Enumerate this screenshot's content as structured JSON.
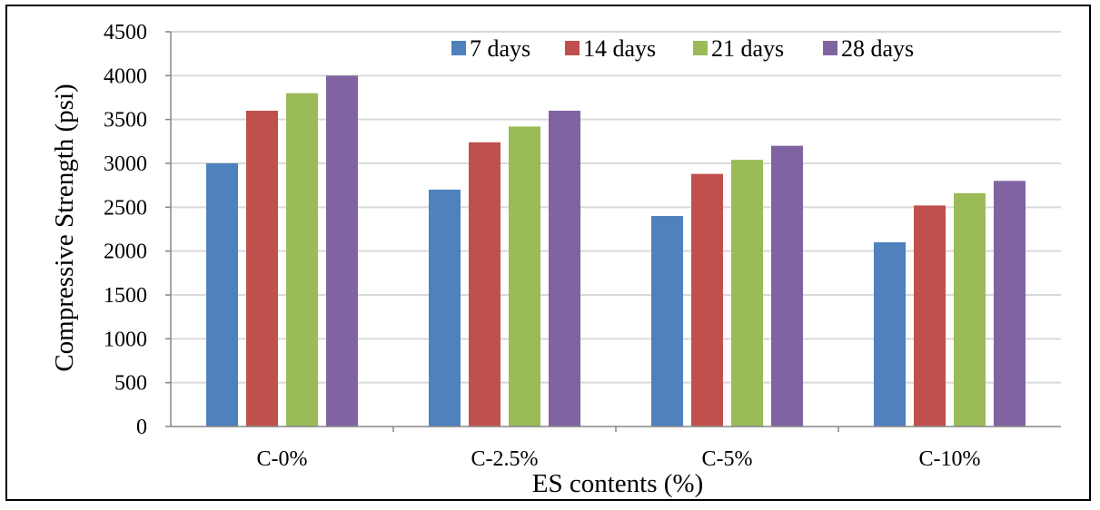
{
  "chart_data": {
    "type": "bar",
    "title": "",
    "xlabel": "ES contents (%)",
    "ylabel": "Compressive Strength (psi)",
    "ylim": [
      0,
      4500
    ],
    "ytick_step": 500,
    "yticks": [
      "0",
      "500",
      "1000",
      "1500",
      "2000",
      "2500",
      "3000",
      "3500",
      "4000",
      "4500"
    ],
    "grid": true,
    "legend_position": "top",
    "categories": [
      "C-0%",
      "C-2.5%",
      "C-5%",
      "C-10%"
    ],
    "series": [
      {
        "name": "7 days",
        "color": "#4F81BD",
        "values": [
          3000,
          2700,
          2400,
          2100
        ]
      },
      {
        "name": "14 days",
        "color": "#C0504D",
        "values": [
          3600,
          3240,
          2880,
          2520
        ]
      },
      {
        "name": "21 days",
        "color": "#9BBB59",
        "values": [
          3800,
          3420,
          3040,
          2660
        ]
      },
      {
        "name": "28 days",
        "color": "#8064A2",
        "values": [
          4000,
          3600,
          3200,
          2800
        ]
      }
    ]
  }
}
